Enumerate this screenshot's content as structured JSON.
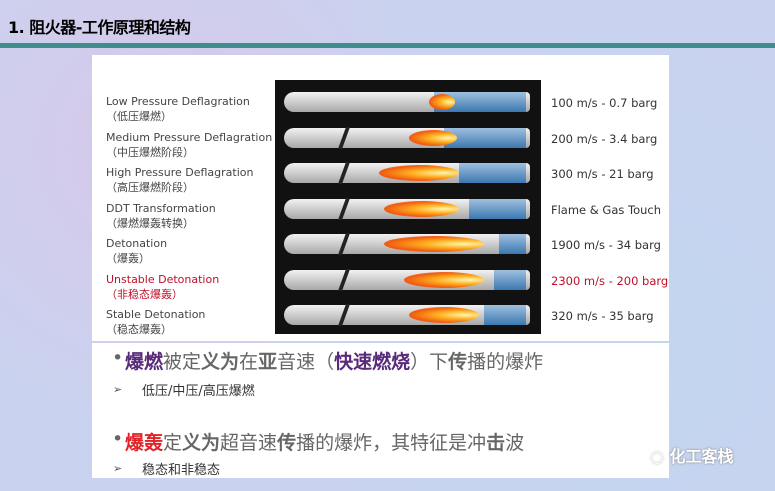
{
  "title": "1. 阻火器-工作原理和结构",
  "rows": [
    {
      "en": "Low Pressure Deflagration",
      "zh": "（低压爆燃）",
      "value": "100 m/s - 0.7 barg"
    },
    {
      "en": "Medium Pressure Deflagration",
      "zh": "（中压爆燃阶段）",
      "value": "200 m/s - 3.4 barg"
    },
    {
      "en": "High Pressure Deflagration",
      "zh": "（高压爆燃阶段）",
      "value": "300 m/s - 21 barg"
    },
    {
      "en": "DDT Transformation",
      "zh": "（爆燃爆轰转换）",
      "value": "Flame & Gas Touch"
    },
    {
      "en": "Detonation",
      "zh": "（爆轰）",
      "value": "1900 m/s - 34 barg"
    },
    {
      "en": "Unstable Detonation",
      "zh": "（非稳态爆轰）",
      "value": "2300 m/s - 200 barg",
      "highlight": "#c0102a"
    },
    {
      "en": "Stable Detonation",
      "zh": "（稳态爆轰）",
      "value": "320 m/s - 35 barg"
    }
  ],
  "bullets": [
    {
      "parts": [
        "爆燃",
        "被定",
        "义为",
        "在",
        "亚",
        "音速（",
        "快速燃烧",
        "）下",
        "传",
        "播的爆炸"
      ],
      "sub": "低压/中压/高压爆燃"
    },
    {
      "parts": [
        "爆轰",
        "定",
        "义为",
        "超音速",
        "传",
        "播的爆炸，其特征是冲",
        "击",
        "波"
      ],
      "sub": "稳态和非稳态"
    }
  ],
  "watermark": "化工客栈"
}
